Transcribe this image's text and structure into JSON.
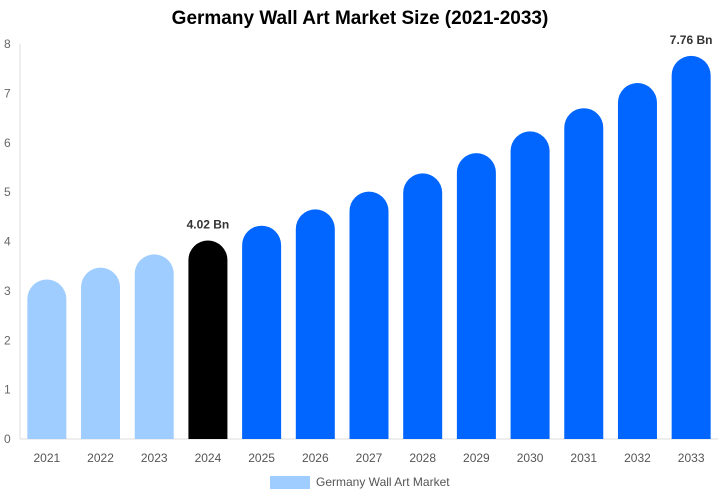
{
  "chart_data": {
    "type": "bar",
    "title": "Germany Wall Art Market Size (2021-2033)",
    "categories": [
      "2021",
      "2022",
      "2023",
      "2024",
      "2025",
      "2026",
      "2027",
      "2028",
      "2029",
      "2030",
      "2031",
      "2032",
      "2033"
    ],
    "series": [
      {
        "name": "Germany Wall Art Market",
        "values": [
          3.23,
          3.47,
          3.74,
          4.02,
          4.32,
          4.65,
          5.01,
          5.38,
          5.79,
          6.23,
          6.7,
          7.21,
          7.76
        ]
      }
    ],
    "data_labels": {
      "3": "4.02 Bn",
      "12": "7.76 Bn"
    },
    "ylim": [
      0,
      8
    ],
    "yticks": [
      0,
      1,
      2,
      3,
      4,
      5,
      6,
      7,
      8
    ],
    "xlabel": "",
    "ylabel": "",
    "grid": false,
    "legend_position": "bottom",
    "colors": {
      "historical": "#a0cdff",
      "current": "#000000",
      "forecast": "#0066ff"
    }
  }
}
